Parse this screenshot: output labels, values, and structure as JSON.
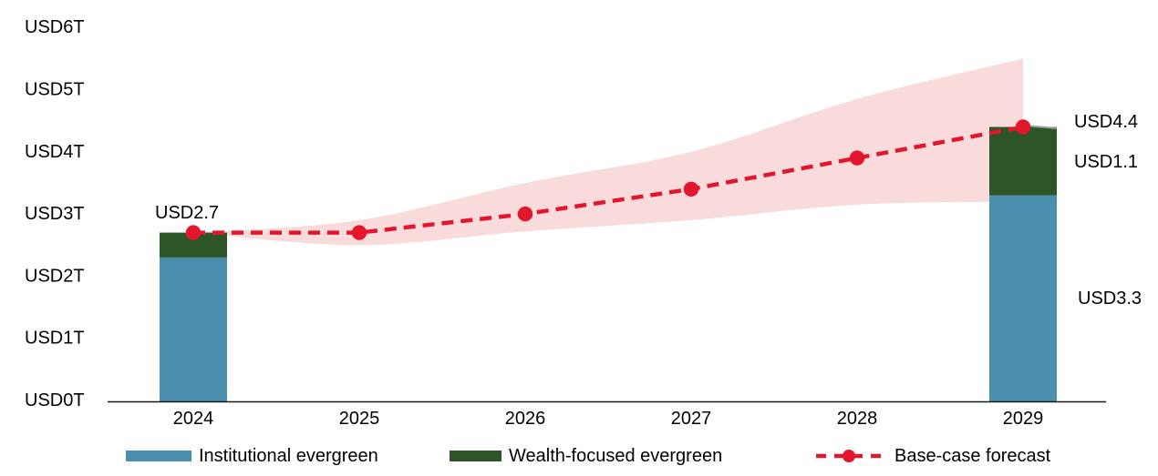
{
  "chart_data": {
    "type": "bar",
    "subtype": "stacked-bars-with-forecast-line-and-range-band",
    "x_labels": [
      "2024",
      "2025",
      "2026",
      "2027",
      "2028",
      "2029"
    ],
    "y_axis": {
      "range": [
        0,
        6
      ],
      "ticks": [
        {
          "value": 0,
          "label": "USD0T"
        },
        {
          "value": 1,
          "label": "USD1T"
        },
        {
          "value": 2,
          "label": "USD2T"
        },
        {
          "value": 3,
          "label": "USD3T"
        },
        {
          "value": 4,
          "label": "USD4T"
        },
        {
          "value": 5,
          "label": "USD5T"
        },
        {
          "value": 6,
          "label": "USD6T"
        }
      ]
    },
    "bars": {
      "years": [
        "2024",
        "2029"
      ],
      "institutional": {
        "2024": 2.3,
        "2029": 3.3
      },
      "wealth": {
        "2024": 0.4,
        "2029": 1.1
      },
      "totals": {
        "2024": 2.7,
        "2029": 4.4
      }
    },
    "forecast_line": {
      "name": "Base-case forecast",
      "x": [
        "2024",
        "2025",
        "2026",
        "2027",
        "2028",
        "2029"
      ],
      "values": [
        2.7,
        2.7,
        3.0,
        3.4,
        3.9,
        4.4
      ]
    },
    "forecast_band": {
      "name": "forecast-uncertainty-range",
      "upper": [
        2.7,
        2.9,
        3.5,
        4.0,
        4.85,
        5.5
      ],
      "lower": [
        2.7,
        2.5,
        2.72,
        2.9,
        3.15,
        3.2
      ]
    },
    "annotations": [
      {
        "id": "total-2024",
        "text": "USD2.7"
      },
      {
        "id": "total-2029",
        "text": "USD4.4"
      },
      {
        "id": "wealth-2029",
        "text": "USD1.1"
      },
      {
        "id": "institutional-2029",
        "text": "USD3.3"
      }
    ],
    "colors": {
      "institutional": "#4A90AE",
      "wealth": "#2D5528",
      "forecast": "#E2172E",
      "band": "#FADBDB",
      "axis": "#1a1a1a",
      "text": "#000000",
      "bar_top_edge": "#9B9B9B"
    },
    "legend_position": "bottom",
    "grid": false
  },
  "legend": {
    "items": [
      {
        "label": "Institutional evergreen",
        "swatch": "blue-rect"
      },
      {
        "label": "Wealth-focused evergreen",
        "swatch": "green-rect"
      },
      {
        "label": "Base-case forecast",
        "swatch": "red-dashed-line-with-dot"
      }
    ]
  }
}
